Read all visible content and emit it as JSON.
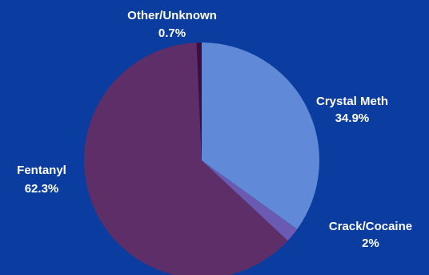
{
  "chart_data": {
    "type": "pie",
    "slices": [
      {
        "label": "Crystal Meth",
        "value": 34.9,
        "value_label": "34.9%",
        "color": "#6089d8"
      },
      {
        "label": "Crack/Cocaine",
        "value": 2,
        "value_label": "2%",
        "color": "#6a5ab2"
      },
      {
        "label": "Fentanyl",
        "value": 62.3,
        "value_label": "62.3%",
        "color": "#5e2e68"
      },
      {
        "label": "Other/Unknown",
        "value": 0.7,
        "value_label": "0.7%",
        "color": "#3f0e3e"
      }
    ],
    "start": "12 o'clock",
    "direction": "clockwise",
    "background_color": "#0a3d9f",
    "label_color": "#ffffff"
  }
}
